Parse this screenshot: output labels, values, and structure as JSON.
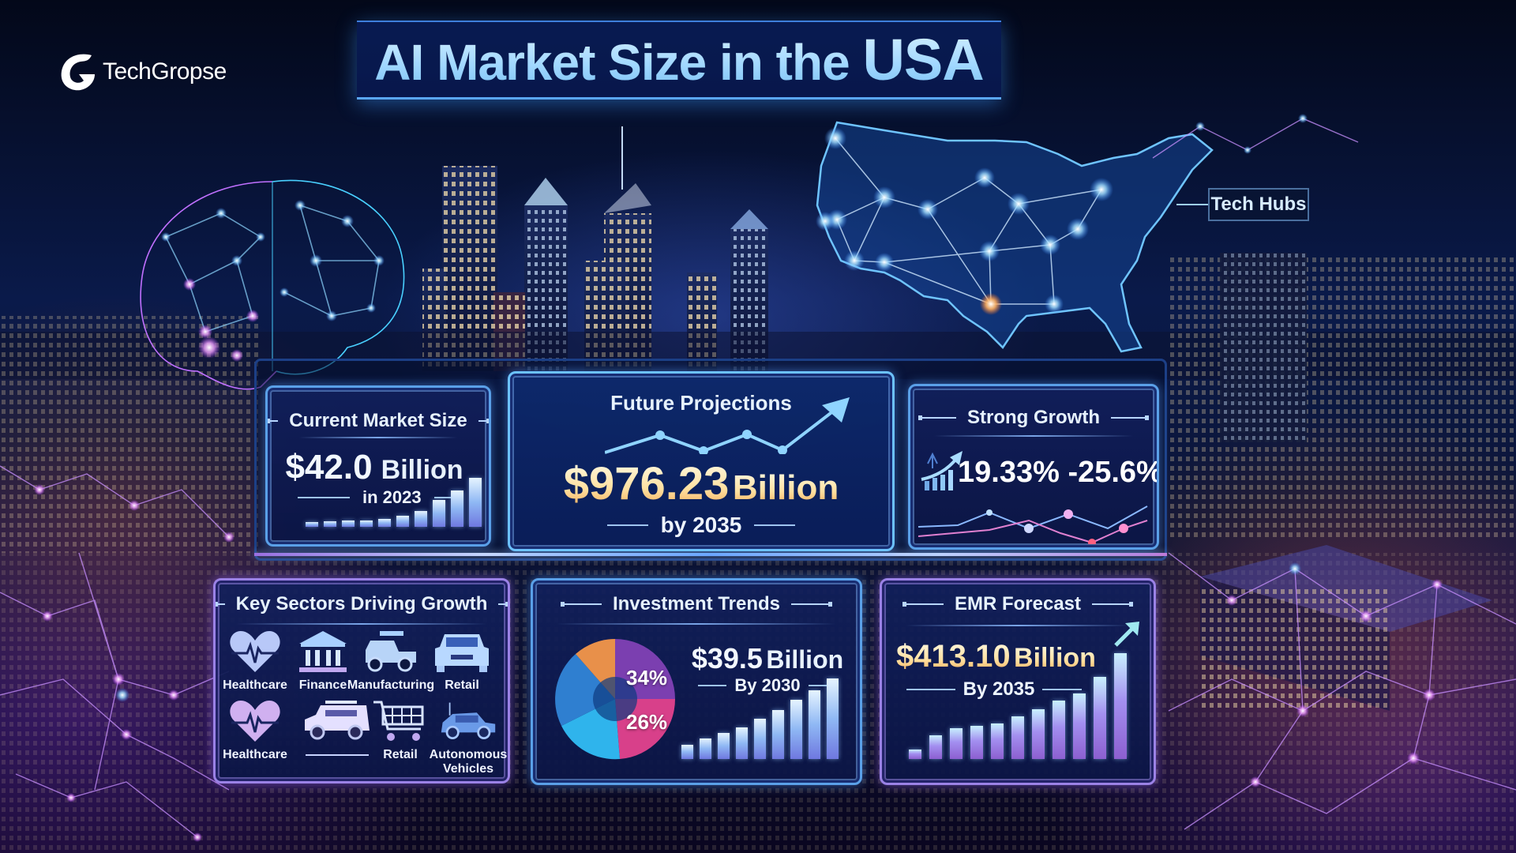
{
  "brand": {
    "name": "TechGropse",
    "icon": "techgropse-logo-icon"
  },
  "title": {
    "prefix": "AI Market Size in the ",
    "highlight": "USA"
  },
  "map": {
    "label": "Tech Hubs",
    "icon": "usa-map-network-icon"
  },
  "illustrations": {
    "brain": "neural-brain-icon",
    "skyline": "city-skyline"
  },
  "cards": {
    "current_market": {
      "title": "Current Market Size",
      "value": "$42.0",
      "unit": "Billion",
      "subtitle": "in 2023",
      "bars": [
        6,
        7,
        8,
        8,
        10,
        14,
        20,
        34,
        46,
        62
      ]
    },
    "future_projections": {
      "title": "Future Projections",
      "value": "$976.23",
      "unit": "Billion",
      "subtitle": "by 2035",
      "icon": "trend-up-arrow-icon"
    },
    "strong_growth": {
      "title": "Strong Growth",
      "value": "19.33% -25.6%",
      "icon": "growth-chart-arrow-icon"
    },
    "key_sectors": {
      "title": "Key Sectors Driving Growth",
      "items": [
        {
          "label": "Healthcare",
          "icon": "heart-pulse-icon"
        },
        {
          "label": "Finance",
          "icon": "bank-icon"
        },
        {
          "label": "Manufacturing",
          "icon": "utility-vehicle-icon"
        },
        {
          "label": "Retail",
          "icon": "car-icon"
        },
        {
          "label": "Healthcare",
          "icon": "heart-pulse-icon"
        },
        {
          "label": "",
          "icon": "van-icon"
        },
        {
          "label": "Retail",
          "icon": "shopping-cart-icon"
        },
        {
          "label": "Autonomous Vehicles",
          "icon": "autonomous-car-icon"
        }
      ]
    },
    "investment_trends": {
      "title": "Investment Trends",
      "value": "$39.5",
      "unit": "Billion",
      "subtitle": "By 2030",
      "pie_labels": [
        "34%",
        "26%"
      ],
      "bars": [
        10,
        14,
        18,
        22,
        28,
        34,
        41,
        48,
        56
      ]
    },
    "emr_forecast": {
      "title": "EMR Forecast",
      "value": "$413.10",
      "unit": "Billion",
      "subtitle": "By 2035",
      "icon": "arrow-up-right-icon",
      "bars": [
        4,
        10,
        13,
        14,
        15,
        18,
        21,
        25,
        28,
        35,
        45
      ]
    }
  },
  "colors": {
    "background": "#050a1f",
    "frame_blue": "#5aa0e8",
    "frame_purple": "#9b82e6",
    "title_cyan": "#9fd6ff",
    "gold": "#ffd48a",
    "pie_purple": "#7b3fb0",
    "pie_pink": "#d8408a",
    "pie_cyan": "#2fb4ec",
    "pie_blue": "#2f7fd0",
    "pie_orange": "#e8904a"
  },
  "chart_data": [
    {
      "type": "bar",
      "title": "Current Market Size",
      "categories": [
        "1",
        "2",
        "3",
        "4",
        "5",
        "6",
        "7",
        "8",
        "9",
        "10"
      ],
      "values": [
        6,
        7,
        8,
        8,
        10,
        14,
        20,
        34,
        46,
        62
      ],
      "note": "Decorative bars, relative heights; headline $42.0 Billion in 2023"
    },
    {
      "type": "line",
      "title": "Future Projections",
      "values": [
        2,
        5,
        3,
        5,
        3,
        9
      ],
      "note": "Decorative trend line with up arrow; $976.23 Billion by 2035"
    },
    {
      "type": "line",
      "title": "Strong Growth",
      "series": [
        {
          "name": "blue",
          "values": [
            3,
            4,
            6,
            4,
            2,
            5,
            6,
            4
          ]
        },
        {
          "name": "pink",
          "values": [
            2,
            3,
            4,
            6,
            3,
            1,
            3,
            6
          ]
        }
      ],
      "note": "Decorative; growth range 19.33% - 25.6%"
    },
    {
      "type": "pie",
      "title": "Investment Trends",
      "slices": [
        {
          "label": "34%",
          "value": 34,
          "color": "#7b3fb0"
        },
        {
          "label": "26%",
          "value": 26,
          "color": "#d8408a"
        },
        {
          "label": "",
          "value": 16,
          "color": "#2fb4ec"
        },
        {
          "label": "",
          "value": 14,
          "color": "#2f7fd0"
        },
        {
          "label": "",
          "value": 10,
          "color": "#e8904a"
        }
      ]
    },
    {
      "type": "bar",
      "title": "Investment Trends",
      "categories": [
        "1",
        "2",
        "3",
        "4",
        "5",
        "6",
        "7",
        "8",
        "9"
      ],
      "values": [
        10,
        14,
        18,
        22,
        28,
        34,
        41,
        48,
        56
      ],
      "note": "Headline $39.5 Billion By 2030"
    },
    {
      "type": "bar",
      "title": "EMR Forecast",
      "categories": [
        "1",
        "2",
        "3",
        "4",
        "5",
        "6",
        "7",
        "8",
        "9",
        "10",
        "11"
      ],
      "values": [
        4,
        10,
        13,
        14,
        15,
        18,
        21,
        25,
        28,
        35,
        45
      ],
      "note": "Headline $413.10 Billion By 2035"
    }
  ]
}
